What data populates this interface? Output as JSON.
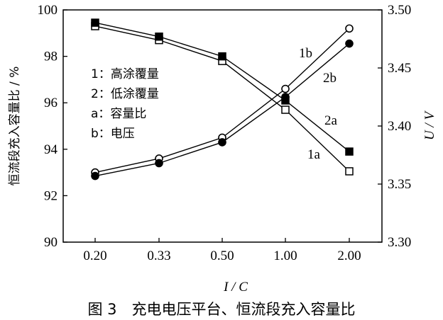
{
  "chart_data": {
    "type": "line",
    "categories": [
      "0.20",
      "0.33",
      "0.50",
      "1.00",
      "2.00"
    ],
    "xlabel": "I / C",
    "ylabel_left": "恒流段充入容量比 / %",
    "ylabel_right": "U / V",
    "ylim_left": [
      90,
      100
    ],
    "ylim_right": [
      3.3,
      3.5
    ],
    "yticks_left": [
      "90",
      "92",
      "94",
      "96",
      "98",
      "100"
    ],
    "yticks_right": [
      "3.30",
      "3.35",
      "3.40",
      "3.45",
      "3.50"
    ],
    "grid": false,
    "series": [
      {
        "name": "1a",
        "axis": "left",
        "marker": "open-square",
        "values": [
          99.3,
          98.7,
          97.8,
          95.7,
          93.05
        ]
      },
      {
        "name": "2a",
        "axis": "left",
        "marker": "filled-square",
        "values": [
          99.45,
          98.85,
          98.0,
          96.1,
          93.9
        ]
      },
      {
        "name": "1b",
        "axis": "right",
        "marker": "open-circle",
        "values": [
          3.36,
          3.372,
          3.39,
          3.432,
          3.484
        ]
      },
      {
        "name": "2b",
        "axis": "right",
        "marker": "filled-circle",
        "values": [
          3.357,
          3.368,
          3.386,
          3.425,
          3.471
        ]
      }
    ],
    "legend": [
      "1：高涂覆量",
      "2：低涂覆量",
      "a：容量比",
      "b：电压"
    ],
    "curve_labels": [
      "1b",
      "2b",
      "2a",
      "1a"
    ],
    "caption": "图 3　充电电压平台、恒流段充入容量比"
  }
}
